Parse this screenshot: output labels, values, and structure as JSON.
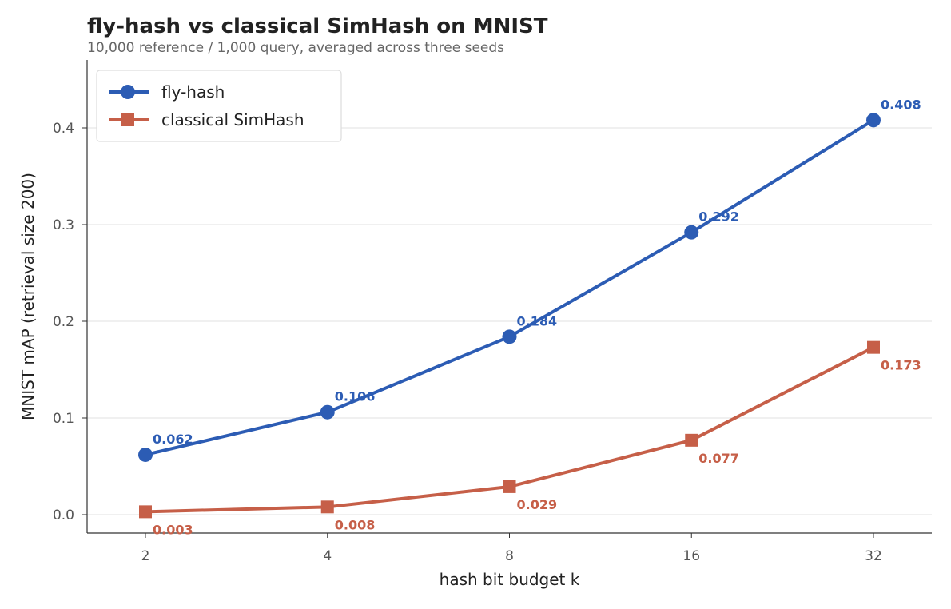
{
  "chart_data": {
    "type": "line",
    "title": "fly-hash vs classical SimHash on MNIST",
    "subtitle": "10,000 reference / 1,000 query, averaged across three seeds",
    "xlabel": "hash bit budget k",
    "ylabel": "MNIST mAP (retrieval size 200)",
    "x": [
      2,
      4,
      8,
      16,
      32
    ],
    "x_scale": "log2",
    "xticks": [
      "2",
      "4",
      "8",
      "16",
      "32"
    ],
    "yticks": [
      "0.0",
      "0.1",
      "0.2",
      "0.3",
      "0.4"
    ],
    "ylim": [
      -0.019,
      0.47
    ],
    "grid": "horizontal",
    "legend": "top-left",
    "series": [
      {
        "name": "fly-hash",
        "values": [
          0.062,
          0.106,
          0.184,
          0.292,
          0.408
        ],
        "labels": [
          "0.062",
          "0.106",
          "0.184",
          "0.292",
          "0.408"
        ],
        "color": "#2c5cb4",
        "marker": "circle"
      },
      {
        "name": "classical SimHash",
        "values": [
          0.003,
          0.008,
          0.029,
          0.077,
          0.173
        ],
        "labels": [
          "0.003",
          "0.008",
          "0.029",
          "0.077",
          "0.173"
        ],
        "color": "#c65f48",
        "marker": "square"
      }
    ]
  }
}
